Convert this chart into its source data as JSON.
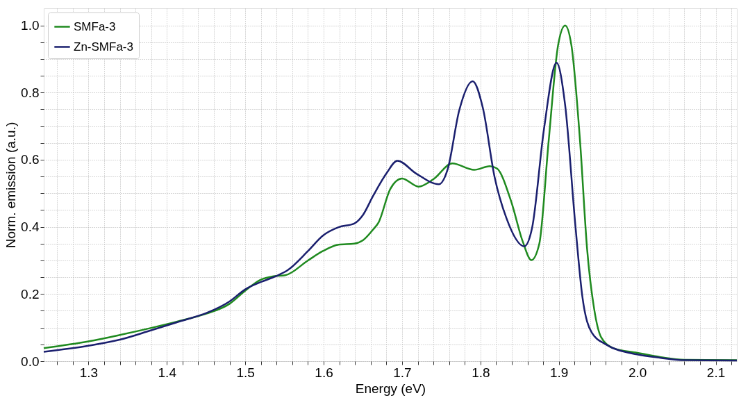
{
  "chart_data": {
    "type": "line",
    "xlabel": "Energy (eV)",
    "ylabel": "Norm. emission (a.u.)",
    "xlim": [
      1.243,
      2.127
    ],
    "ylim": [
      0,
      1.051
    ],
    "xticks": [
      {
        "value": 1.26,
        "label": null
      },
      {
        "value": 1.28,
        "label": null
      },
      1.3,
      {
        "value": 1.32,
        "label": null
      },
      {
        "value": 1.34,
        "label": null
      },
      {
        "value": 1.36,
        "label": null
      },
      {
        "value": 1.38,
        "label": null
      },
      1.4,
      {
        "value": 1.42,
        "label": null
      },
      {
        "value": 1.44,
        "label": null
      },
      {
        "value": 1.46,
        "label": null
      },
      {
        "value": 1.48,
        "label": null
      },
      1.5,
      {
        "value": 1.52,
        "label": null
      },
      {
        "value": 1.54,
        "label": null
      },
      {
        "value": 1.56,
        "label": null
      },
      {
        "value": 1.58,
        "label": null
      },
      1.6,
      {
        "value": 1.62,
        "label": null
      },
      {
        "value": 1.64,
        "label": null
      },
      {
        "value": 1.66,
        "label": null
      },
      {
        "value": 1.68,
        "label": null
      },
      1.7,
      {
        "value": 1.72,
        "label": null
      },
      {
        "value": 1.74,
        "label": null
      },
      {
        "value": 1.76,
        "label": null
      },
      {
        "value": 1.78,
        "label": null
      },
      1.8,
      {
        "value": 1.82,
        "label": null
      },
      {
        "value": 1.84,
        "label": null
      },
      {
        "value": 1.86,
        "label": null
      },
      {
        "value": 1.88,
        "label": null
      },
      1.9,
      {
        "value": 1.92,
        "label": null
      },
      {
        "value": 1.94,
        "label": null
      },
      {
        "value": 1.96,
        "label": null
      },
      {
        "value": 1.98,
        "label": null
      },
      {
        "value": 2.0,
        "label": "2.0"
      },
      {
        "value": 2.02,
        "label": null
      },
      {
        "value": 2.04,
        "label": null
      },
      {
        "value": 2.06,
        "label": null
      },
      {
        "value": 2.08,
        "label": null
      },
      2.1,
      {
        "value": 2.12,
        "label": null
      }
    ],
    "yticks": [
      {
        "value": 0,
        "label": "0.0"
      },
      {
        "value": 0.05,
        "label": null
      },
      {
        "value": 0.1,
        "label": null
      },
      {
        "value": 0.15,
        "label": null
      },
      0.2,
      {
        "value": 0.25,
        "label": null
      },
      {
        "value": 0.3,
        "label": null
      },
      {
        "value": 0.35,
        "label": null
      },
      0.4,
      {
        "value": 0.45,
        "label": null
      },
      {
        "value": 0.5,
        "label": null
      },
      {
        "value": 0.55,
        "label": null
      },
      0.6,
      {
        "value": 0.65,
        "label": null
      },
      {
        "value": 0.7,
        "label": null
      },
      {
        "value": 0.75,
        "label": null
      },
      0.8,
      {
        "value": 0.85,
        "label": null
      },
      {
        "value": 0.9,
        "label": null
      },
      {
        "value": 0.95,
        "label": null
      },
      {
        "value": 1.0,
        "label": "1.0"
      }
    ],
    "grid": true,
    "legend": "top left",
    "marker": "none",
    "line_style": "solid",
    "series": [
      {
        "name": "SMFa-3",
        "color": "#1f8a1f",
        "x": [
          1.243,
          1.3,
          1.34,
          1.38,
          1.42,
          1.451,
          1.48,
          1.5,
          1.519,
          1.536,
          1.551,
          1.58,
          1.599,
          1.619,
          1.639,
          1.65,
          1.663,
          1.67,
          1.685,
          1.7,
          1.721,
          1.74,
          1.764,
          1.792,
          1.812,
          1.821,
          1.839,
          1.854,
          1.865,
          1.875,
          1.887,
          1.899,
          1.908,
          1.916,
          1.927,
          1.936,
          1.945,
          1.954,
          1.969,
          2.0,
          2.03,
          2.06,
          2.127
        ],
        "values": [
          0.039,
          0.059,
          0.078,
          0.099,
          0.122,
          0.142,
          0.171,
          0.21,
          0.242,
          0.253,
          0.256,
          0.3,
          0.328,
          0.347,
          0.35,
          0.36,
          0.392,
          0.413,
          0.513,
          0.544,
          0.52,
          0.542,
          0.589,
          0.57,
          0.581,
          0.574,
          0.477,
          0.356,
          0.301,
          0.349,
          0.656,
          0.941,
          1.0,
          0.941,
          0.656,
          0.335,
          0.156,
          0.071,
          0.039,
          0.025,
          0.012,
          0.004,
          0.003
        ]
      },
      {
        "name": "Zn-SMFa-3",
        "color": "#1a1f6e",
        "x": [
          1.243,
          1.3,
          1.34,
          1.38,
          1.42,
          1.451,
          1.48,
          1.5,
          1.519,
          1.539,
          1.554,
          1.58,
          1.599,
          1.619,
          1.639,
          1.65,
          1.663,
          1.68,
          1.694,
          1.718,
          1.747,
          1.758,
          1.773,
          1.79,
          1.803,
          1.818,
          1.833,
          1.856,
          1.866,
          1.881,
          1.897,
          1.908,
          1.921,
          1.93,
          1.942,
          1.96,
          2.0,
          2.03,
          2.06,
          2.127
        ],
        "values": [
          0.028,
          0.046,
          0.064,
          0.092,
          0.121,
          0.144,
          0.178,
          0.214,
          0.235,
          0.253,
          0.271,
          0.328,
          0.374,
          0.399,
          0.41,
          0.435,
          0.492,
          0.559,
          0.597,
          0.559,
          0.527,
          0.57,
          0.748,
          0.834,
          0.755,
          0.549,
          0.427,
          0.342,
          0.399,
          0.691,
          0.889,
          0.763,
          0.406,
          0.192,
          0.085,
          0.05,
          0.02,
          0.01,
          0.003,
          0.002
        ]
      }
    ]
  }
}
